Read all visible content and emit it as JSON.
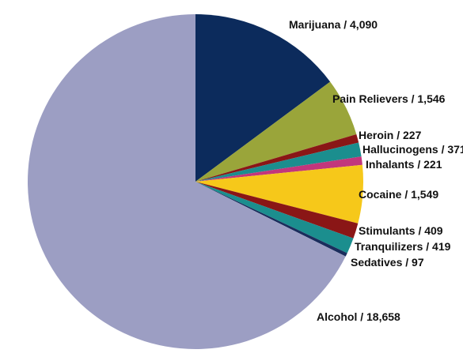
{
  "chart_data": {
    "type": "pie",
    "categories": [
      "Marijuana / 4,090",
      "Pain Relievers / 1,546",
      "Heroin / 227",
      "Hallucinogens / 371",
      "Inhalants / 221",
      "Cocaine / 1,549",
      "Stimulants / 409",
      "Tranquilizers / 419",
      "Sedatives / 97",
      "Alcohol / 18,658"
    ],
    "values": [
      4090,
      1546,
      227,
      371,
      221,
      1549,
      409,
      419,
      97,
      18658
    ],
    "colors": [
      "#0c2b5c",
      "#9aa53a",
      "#8a1616",
      "#1b8e8e",
      "#c2367c",
      "#f6c81a",
      "#8a1616",
      "#1b8e8e",
      "#1a2d5c",
      "#9c9ec3"
    ]
  }
}
